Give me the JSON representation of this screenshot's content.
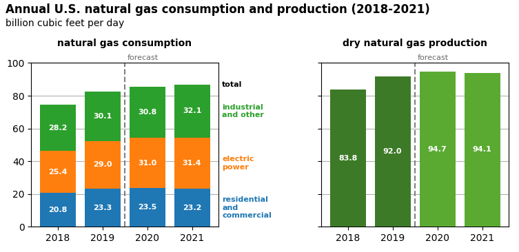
{
  "title": "Annual U.S. natural gas consumption and production (2018-2021)",
  "subtitle": "billion cubic feet per day",
  "chart_data": [
    {
      "type": "bar",
      "stacked": true,
      "title": "natural gas consumption",
      "categories": [
        "2018",
        "2019",
        "2020",
        "2021"
      ],
      "series": [
        {
          "name": "residential\nand\ncommercial",
          "values": [
            20.8,
            23.3,
            23.5,
            23.2
          ]
        },
        {
          "name": "electric\npower",
          "values": [
            25.4,
            29.0,
            31.0,
            31.4
          ]
        },
        {
          "name": "industrial\nand other",
          "values": [
            28.2,
            30.1,
            30.8,
            32.1
          ]
        }
      ],
      "ylim": [
        0,
        100
      ],
      "yticks": [
        0,
        20,
        40,
        60,
        80,
        100
      ],
      "grid": true,
      "data_labels": true,
      "annotations": [
        {
          "text": "forecast",
          "x": "2020",
          "line_style": "dashed"
        },
        {
          "text": "total",
          "x": "2021"
        }
      ]
    },
    {
      "type": "bar",
      "title": "dry natural gas production",
      "categories": [
        "2018",
        "2019",
        "2020",
        "2021"
      ],
      "values": [
        83.8,
        92.0,
        94.7,
        94.1
      ],
      "colors": [
        "#3d7a28",
        "#3d7a28",
        "#5aaa32",
        "#5aaa32"
      ],
      "ylim": [
        0,
        100
      ],
      "yticks": [
        0,
        20,
        40,
        60,
        80,
        100
      ],
      "grid": true,
      "data_labels": true,
      "tick_labels": "x",
      "annotations": [
        {
          "text": "forecast",
          "x": "2020",
          "line_style": "dashed"
        }
      ]
    }
  ]
}
